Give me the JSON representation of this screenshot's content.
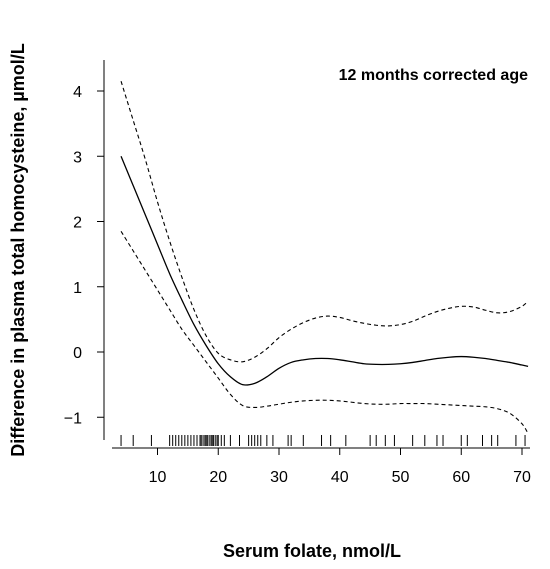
{
  "chart_data": {
    "type": "line",
    "title": "",
    "annotation": "12 months corrected age",
    "xlabel": "Serum folate, nmol/L",
    "ylabel": "Difference in plasma total homocysteine, µmol/L",
    "xlim": [
      3,
      72
    ],
    "ylim": [
      -1.45,
      4.2
    ],
    "x_ticks": [
      10,
      20,
      30,
      40,
      50,
      60,
      70
    ],
    "y_ticks": [
      -1,
      0,
      1,
      2,
      3,
      4
    ],
    "y_tick_labels": [
      "−1",
      "0",
      "1",
      "2",
      "3",
      "4"
    ],
    "grid": false,
    "legend": "none",
    "series": [
      {
        "style": "solid",
        "x": [
          4,
          6,
          8,
          10,
          12,
          14,
          16,
          18,
          20,
          22,
          24,
          26,
          28,
          30,
          32,
          34,
          36,
          38,
          40,
          42,
          44,
          46,
          48,
          50,
          52,
          54,
          56,
          58,
          60,
          62,
          64,
          66,
          68,
          70,
          71
        ],
        "y": [
          3.0,
          2.55,
          2.1,
          1.65,
          1.2,
          0.8,
          0.42,
          0.1,
          -0.18,
          -0.38,
          -0.5,
          -0.48,
          -0.38,
          -0.25,
          -0.16,
          -0.12,
          -0.1,
          -0.1,
          -0.12,
          -0.15,
          -0.18,
          -0.19,
          -0.19,
          -0.18,
          -0.16,
          -0.13,
          -0.1,
          -0.08,
          -0.07,
          -0.08,
          -0.1,
          -0.13,
          -0.16,
          -0.2,
          -0.22
        ]
      },
      {
        "style": "dashed",
        "x": [
          4,
          6,
          8,
          10,
          12,
          14,
          16,
          18,
          20,
          22,
          24,
          26,
          28,
          30,
          32,
          34,
          36,
          38,
          40,
          42,
          44,
          46,
          48,
          50,
          52,
          54,
          56,
          58,
          60,
          62,
          64,
          66,
          68,
          70,
          71
        ],
        "y": [
          4.15,
          3.55,
          2.95,
          2.3,
          1.7,
          1.15,
          0.65,
          0.25,
          -0.02,
          -0.12,
          -0.15,
          -0.08,
          0.05,
          0.22,
          0.35,
          0.45,
          0.52,
          0.55,
          0.53,
          0.48,
          0.44,
          0.41,
          0.4,
          0.42,
          0.47,
          0.55,
          0.62,
          0.67,
          0.7,
          0.69,
          0.64,
          0.6,
          0.62,
          0.7,
          0.78
        ]
      },
      {
        "style": "dashed",
        "x": [
          4,
          6,
          8,
          10,
          12,
          14,
          16,
          18,
          20,
          22,
          24,
          26,
          28,
          30,
          32,
          34,
          36,
          38,
          40,
          42,
          44,
          46,
          48,
          50,
          52,
          54,
          56,
          58,
          60,
          62,
          64,
          66,
          68,
          70,
          71
        ],
        "y": [
          1.85,
          1.55,
          1.25,
          0.95,
          0.65,
          0.35,
          0.1,
          -0.15,
          -0.4,
          -0.65,
          -0.82,
          -0.85,
          -0.83,
          -0.8,
          -0.77,
          -0.75,
          -0.74,
          -0.74,
          -0.75,
          -0.77,
          -0.79,
          -0.8,
          -0.8,
          -0.79,
          -0.79,
          -0.79,
          -0.8,
          -0.81,
          -0.82,
          -0.83,
          -0.84,
          -0.87,
          -0.94,
          -1.1,
          -1.25
        ]
      }
    ],
    "rug": [
      4,
      6,
      9,
      12,
      12.5,
      13,
      13.5,
      14,
      14.5,
      15,
      15.5,
      16,
      16.5,
      17,
      17.2,
      17.5,
      17.8,
      18,
      18.2,
      18.5,
      18.8,
      19,
      19.2,
      19.5,
      19.8,
      20,
      20.5,
      21,
      22,
      23.5,
      25,
      25.5,
      26,
      26.5,
      27,
      28,
      29,
      31.5,
      32,
      34,
      37,
      38.5,
      41,
      45,
      46,
      47.5,
      49,
      52,
      54,
      56,
      57,
      60,
      61,
      63.5,
      65,
      66,
      69,
      70.5
    ]
  }
}
